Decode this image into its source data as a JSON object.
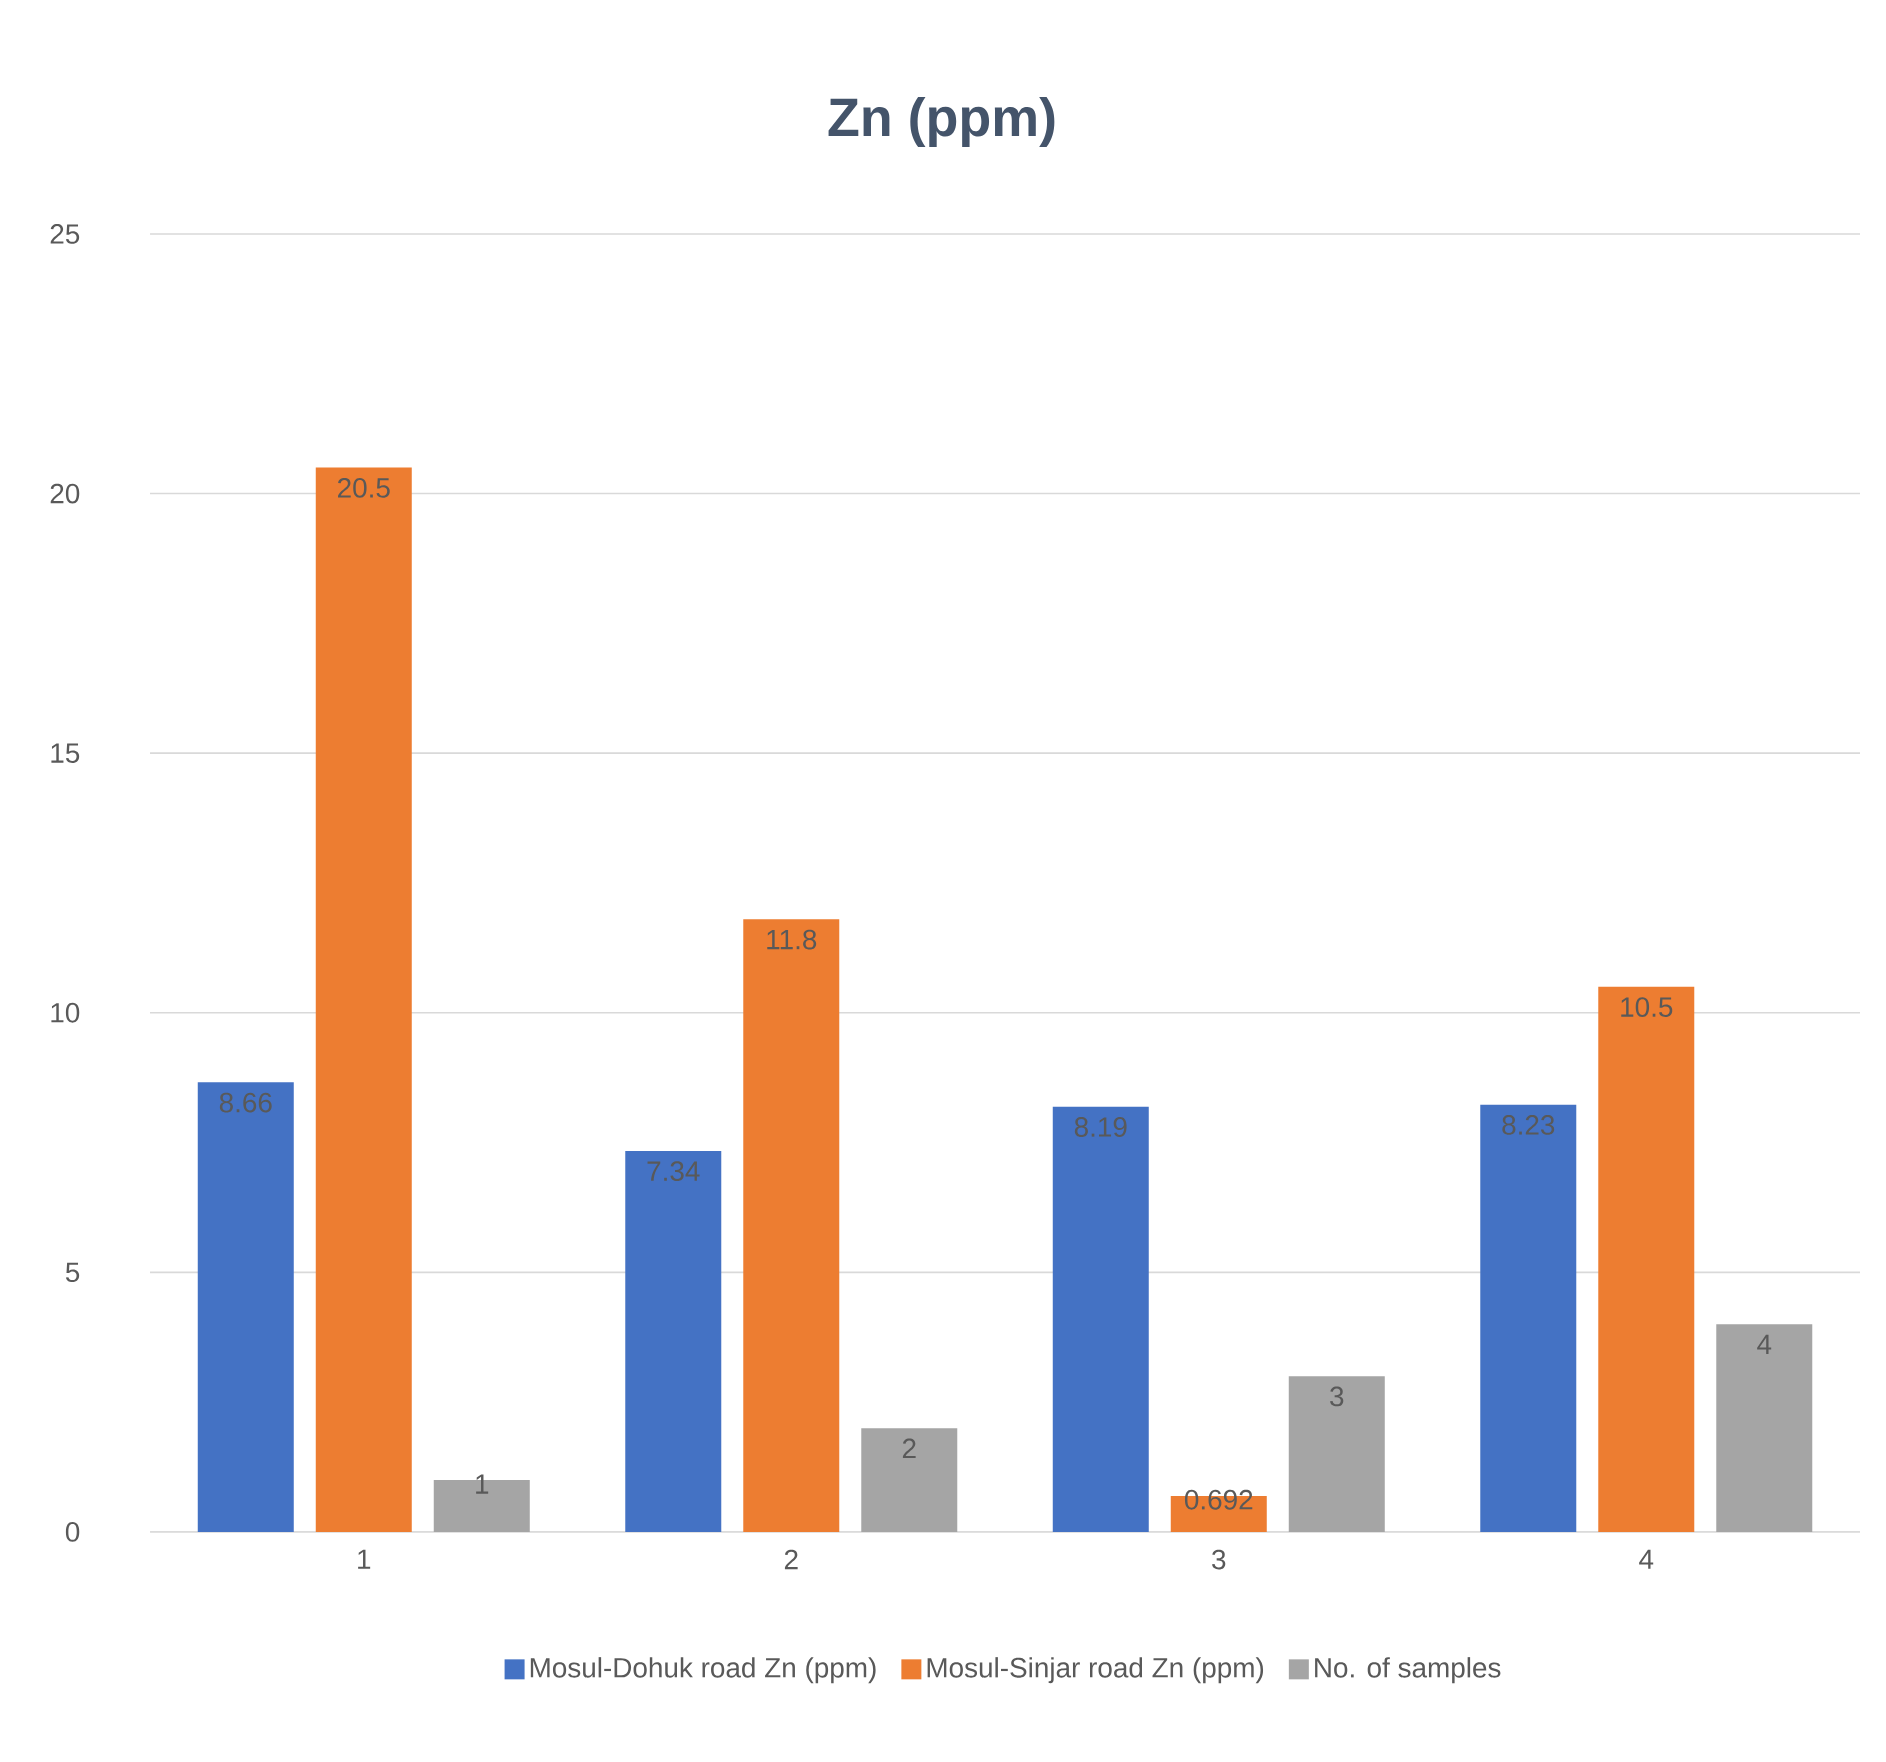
{
  "chart_data": {
    "type": "bar",
    "title": "Zn (ppm)",
    "categories": [
      "1",
      "2",
      "3",
      "4"
    ],
    "series": [
      {
        "name": "Mosul-Dohuk road Zn (ppm)",
        "color": "#4472c4",
        "values": [
          8.66,
          7.34,
          8.19,
          8.23
        ]
      },
      {
        "name": "Mosul-Sinjar road Zn (ppm)",
        "color": "#ed7d31",
        "values": [
          20.5,
          11.8,
          0.692,
          10.5
        ]
      },
      {
        "name": "No. of samples",
        "color": "#a5a5a5",
        "values": [
          1,
          2,
          3,
          4
        ]
      }
    ],
    "ylim": [
      0,
      25
    ],
    "yticks": [
      0,
      5,
      10,
      15,
      20,
      25
    ],
    "grid": "y",
    "legend": "bottom",
    "data_labels": true
  }
}
